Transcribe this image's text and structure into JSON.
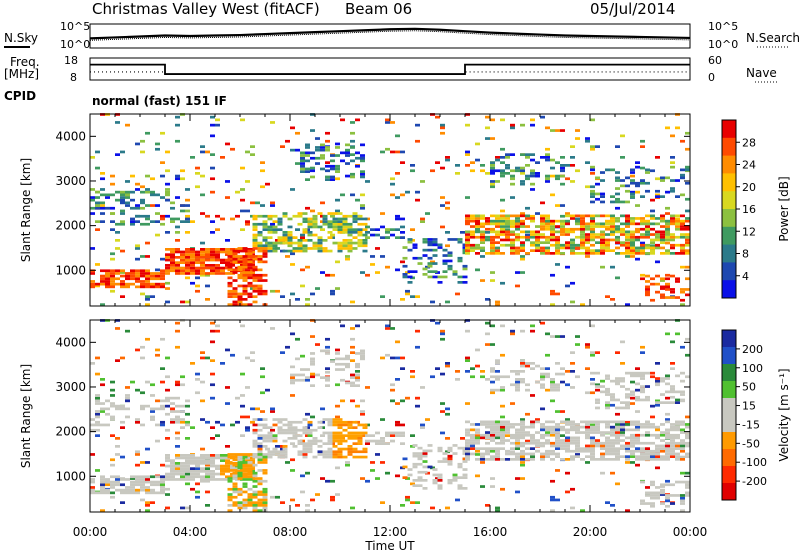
{
  "header": {
    "title": "Christmas Valley West (fitACF)",
    "beam": "Beam 06",
    "date": "05/Jul/2014"
  },
  "left_labels": {
    "nsky": "N.Sky",
    "freq": "Freq.",
    "freq_unit": "[MHz]",
    "cpid": "CPID"
  },
  "right_labels": {
    "nsearch": "N.Search",
    "nave": "Nave"
  },
  "cpid_text": "normal (fast) 151 IF",
  "chart_data": [
    {
      "type": "line",
      "panel": "noise",
      "series": [
        {
          "name": "N.Sky",
          "x": [
            0,
            1,
            2,
            3,
            4,
            5,
            6,
            7,
            8,
            9,
            10,
            11,
            12,
            13,
            14,
            15,
            16,
            17,
            18,
            19,
            20,
            21,
            22,
            23,
            24
          ],
          "y": [
            2,
            2.2,
            2.4,
            2.6,
            2.5,
            2.6,
            2.7,
            2.9,
            3.1,
            3.3,
            3.5,
            3.7,
            3.9,
            4.0,
            3.8,
            3.5,
            3.2,
            3.0,
            2.8,
            2.6,
            2.5,
            2.4,
            2.3,
            2.2,
            2.1
          ]
        },
        {
          "name": "N.Search",
          "x": [
            0,
            1,
            2,
            3,
            4,
            5,
            6,
            7,
            8,
            9,
            10,
            11,
            12,
            13,
            14,
            15,
            16,
            17,
            18,
            19,
            20,
            21,
            22,
            23,
            24
          ],
          "y": [
            1.6,
            1.8,
            2.0,
            2.2,
            2.1,
            2.2,
            2.3,
            2.5,
            2.7,
            2.9,
            3.1,
            3.3,
            3.5,
            3.6,
            3.4,
            3.1,
            2.8,
            2.6,
            2.4,
            2.2,
            2.1,
            2.0,
            1.9,
            1.8,
            1.7
          ]
        }
      ],
      "yticks_left": [
        "10^5",
        "10^0"
      ],
      "yticks_right": [
        "10^5",
        "10^0"
      ],
      "xlim": [
        0,
        24
      ]
    },
    {
      "type": "line",
      "panel": "frequency",
      "series": [
        {
          "name": "Freq.",
          "x": [
            0,
            3,
            3,
            15,
            15,
            24
          ],
          "y": [
            15,
            15,
            10.7,
            10.7,
            15,
            15
          ]
        },
        {
          "name": "Nave",
          "x": [
            0,
            3,
            3,
            15,
            15,
            24
          ],
          "y": [
            22,
            22,
            16,
            16,
            22,
            22
          ]
        }
      ],
      "yticks_left": [
        "18",
        "8"
      ],
      "yticks_right": [
        "60",
        "0"
      ],
      "ylim_left": [
        8,
        18
      ],
      "ylim_right": [
        0,
        60
      ],
      "xlim": [
        0,
        24
      ]
    },
    {
      "type": "heatmap",
      "panel": "power",
      "ylabel": "Slant Range [km]",
      "yticks": [
        "4000",
        "3000",
        "2000",
        "1000"
      ],
      "ylim": [
        200,
        4500
      ],
      "xlim": [
        0,
        24
      ],
      "colorbar": {
        "label": "Power [dB]",
        "ticks": [
          "28",
          "24",
          "20",
          "16",
          "12",
          "8",
          "4"
        ],
        "colors": [
          "#e80000",
          "#ff4a00",
          "#ff8c00",
          "#ffc000",
          "#d8d820",
          "#8cc040",
          "#3f9a60",
          "#2b7a8a",
          "#1e48b0",
          "#0a10e8"
        ]
      }
    },
    {
      "type": "heatmap",
      "panel": "velocity",
      "ylabel": "Slant Range [km]",
      "xlabel": "Time UT",
      "xticks": [
        "00:00",
        "04:00",
        "08:00",
        "12:00",
        "16:00",
        "20:00",
        "00:00"
      ],
      "yticks": [
        "4000",
        "3000",
        "2000",
        "1000"
      ],
      "ylim": [
        200,
        4500
      ],
      "xlim": [
        0,
        24
      ],
      "colorbar": {
        "label": "Velocity [m s⁻¹]",
        "ticks": [
          "200",
          "100",
          "50",
          "15",
          "-15",
          "-50",
          "-100",
          "-200"
        ],
        "colors": [
          "#1a2aa0",
          "#2050c8",
          "#2a8a3a",
          "#50c030",
          "#c8c8c0",
          "#c8c8c0",
          "#ff9a00",
          "#ff6a00",
          "#ff2a00",
          "#e00000"
        ]
      }
    }
  ]
}
